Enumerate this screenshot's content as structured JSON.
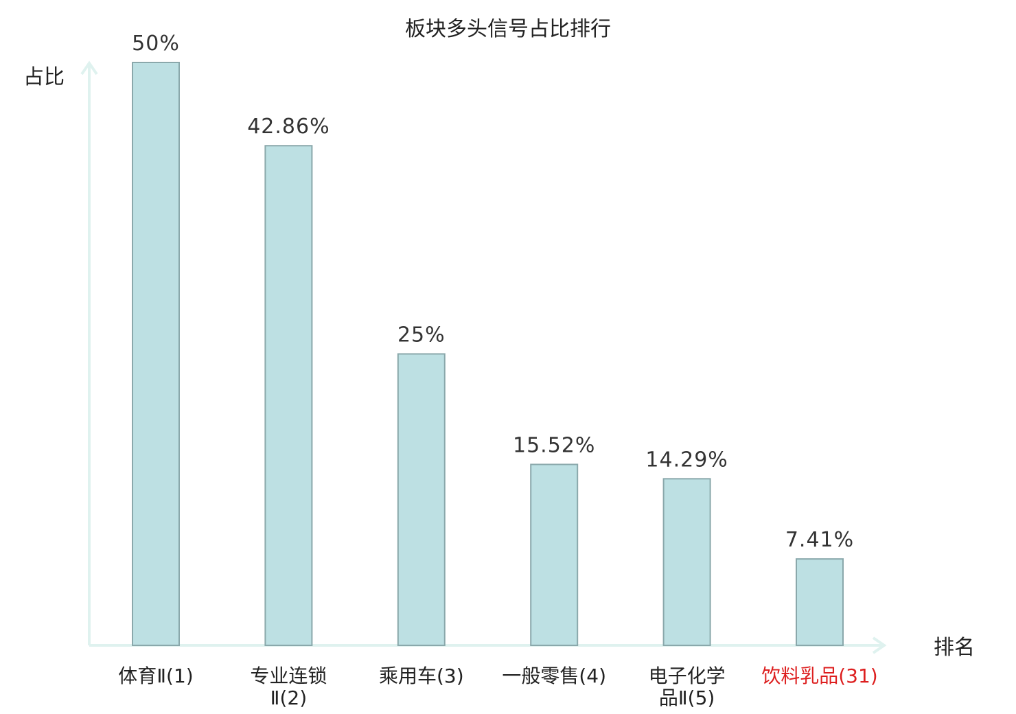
{
  "chart_data": {
    "type": "bar",
    "title": "板块多头信号占比排行",
    "ylabel": "占比",
    "xlabel": "排名",
    "ylim": [
      0,
      50
    ],
    "grid": false,
    "categories": [
      "体育Ⅱ(1)",
      "专业连锁Ⅱ(2)",
      "乘用车(3)",
      "一般零售(4)",
      "电子化学品Ⅱ(5)",
      "饮料乳品(31)"
    ],
    "category_lines": [
      [
        "体育Ⅱ(1)"
      ],
      [
        "专业连锁",
        "Ⅱ(2)"
      ],
      [
        "乘用车(3)"
      ],
      [
        "一般零售(4)"
      ],
      [
        "电子化学",
        "品Ⅱ(5)"
      ],
      [
        "饮料乳品(31)"
      ]
    ],
    "values": [
      50,
      42.86,
      25,
      15.52,
      14.29,
      7.41
    ],
    "value_labels": [
      "50%",
      "42.86%",
      "25%",
      "15.52%",
      "14.29%",
      "7.41%"
    ],
    "highlight_index": 5,
    "colors": {
      "bar_fill": "#bde0e3",
      "bar_stroke": "#8aa8ab",
      "axis": "#dff2ef",
      "text": "#333333",
      "highlight": "#dd1f1f"
    }
  }
}
